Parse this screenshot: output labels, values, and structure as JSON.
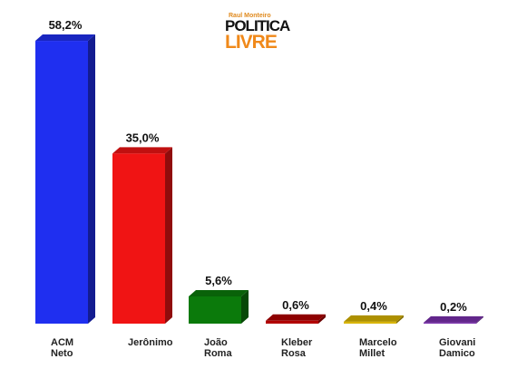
{
  "logo": {
    "author": "Raul Monteiro",
    "line1": "POLITICA",
    "line2": "LIVRE"
  },
  "chart_data": {
    "type": "bar",
    "categories": [
      "ACM Neto",
      "Jerônimo",
      "João Roma",
      "Kleber Rosa",
      "Marcelo Millet",
      "Giovani Damico"
    ],
    "values": [
      58.2,
      35.0,
      5.6,
      0.6,
      0.4,
      0.2
    ],
    "value_labels": [
      "58,2%",
      "35,0%",
      "5,6%",
      "0,6%",
      "0,4%",
      "0,2%"
    ],
    "colors": [
      "#1f2ff0",
      "#f01414",
      "#0b7a0b",
      "#b20000",
      "#d8b400",
      "#7b2fae"
    ]
  }
}
